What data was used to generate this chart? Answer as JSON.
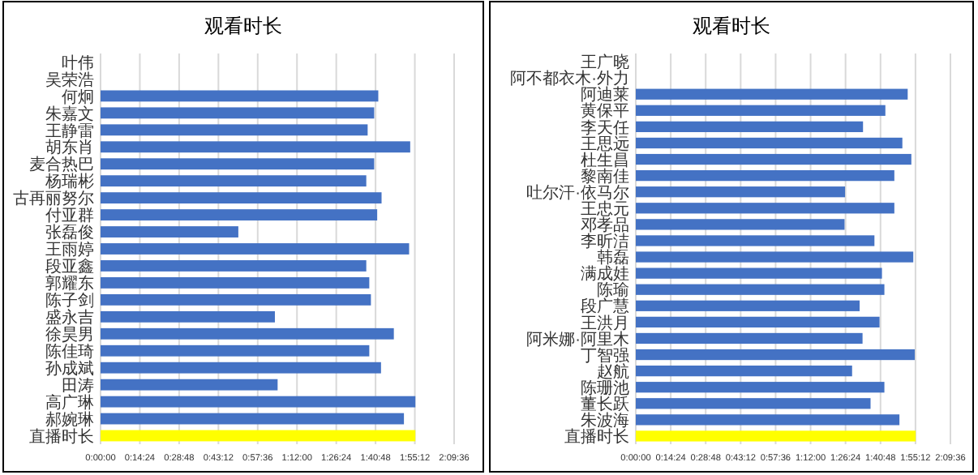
{
  "chart_data": [
    {
      "type": "bar",
      "orientation": "horizontal",
      "title": "观看时长",
      "grid": "x",
      "categories": [
        "叶伟",
        "吴荣浩",
        "何炯",
        "朱嘉文",
        "王静雷",
        "胡东肖",
        "麦合热巴",
        "杨瑞彬",
        "古再丽努尔",
        "付亚群",
        "张磊俊",
        "王雨婷",
        "段亚鑫",
        "郭耀东",
        "陈子剑",
        "盛永吉",
        "徐昊男",
        "陈佳琦",
        "孙成斌",
        "田涛",
        "高广琳",
        "郝婉琳",
        "直播时长"
      ],
      "values": [
        null,
        null,
        101.8,
        100.3,
        97.9,
        113.5,
        100.3,
        97.4,
        103.0,
        101.4,
        50.5,
        113.1,
        97.4,
        98.5,
        99.1,
        63.9,
        107.5,
        98.5,
        102.8,
        64.9,
        115.4,
        111.2,
        115.4
      ],
      "colors": [
        "#4472c4",
        "#4472c4",
        "#4472c4",
        "#4472c4",
        "#4472c4",
        "#4472c4",
        "#4472c4",
        "#4472c4",
        "#4472c4",
        "#4472c4",
        "#4472c4",
        "#4472c4",
        "#4472c4",
        "#4472c4",
        "#4472c4",
        "#4472c4",
        "#4472c4",
        "#4472c4",
        "#4472c4",
        "#4472c4",
        "#4472c4",
        "#4472c4",
        "#ffff00"
      ],
      "xlim": [
        0,
        129.6
      ],
      "xticks": [
        {
          "value": 0,
          "label": "0:00:00"
        },
        {
          "value": 14.4,
          "label": "0:14:24"
        },
        {
          "value": 28.8,
          "label": "0:28:48"
        },
        {
          "value": 43.2,
          "label": "0:43:12"
        },
        {
          "value": 57.6,
          "label": "0:57:36"
        },
        {
          "value": 72,
          "label": "1:12:00"
        },
        {
          "value": 86.4,
          "label": "1:26:24"
        },
        {
          "value": 100.8,
          "label": "1:40:48"
        },
        {
          "value": 115.2,
          "label": "1:55:12"
        },
        {
          "value": 129.6,
          "label": "2:09:36"
        }
      ]
    },
    {
      "type": "bar",
      "orientation": "horizontal",
      "title": "观看时长",
      "grid": "x",
      "categories": [
        "王广晓",
        "阿不都衣木·外力",
        "阿迪莱",
        "黄保平",
        "李天任",
        "王思远",
        "杜生昌",
        "黎南佳",
        "吐尔汗·依马尔",
        "王忠元",
        "邓孝品",
        "李昕洁",
        "韩磊",
        "满成娃",
        "陈瑜",
        "段广慧",
        "王洪月",
        "阿米娜·阿里木",
        "丁智强",
        "赵航",
        "陈珊池",
        "董长跃",
        "朱波海",
        "直播时长"
      ],
      "values": [
        null,
        null,
        112.0,
        102.8,
        93.6,
        109.8,
        113.5,
        106.5,
        86.2,
        106.5,
        86.0,
        98.3,
        114.3,
        101.4,
        102.4,
        92.2,
        100.4,
        93.4,
        114.9,
        89.1,
        102.4,
        96.7,
        108.6,
        115.3
      ],
      "colors": [
        "#4472c4",
        "#4472c4",
        "#4472c4",
        "#4472c4",
        "#4472c4",
        "#4472c4",
        "#4472c4",
        "#4472c4",
        "#4472c4",
        "#4472c4",
        "#4472c4",
        "#4472c4",
        "#4472c4",
        "#4472c4",
        "#4472c4",
        "#4472c4",
        "#4472c4",
        "#4472c4",
        "#4472c4",
        "#4472c4",
        "#4472c4",
        "#4472c4",
        "#4472c4",
        "#ffff00"
      ],
      "xlim": [
        0,
        129.6
      ],
      "xticks": [
        {
          "value": 0,
          "label": "0:00:00"
        },
        {
          "value": 14.4,
          "label": "0:14:24"
        },
        {
          "value": 28.8,
          "label": "0:28:48"
        },
        {
          "value": 43.2,
          "label": "0:43:12"
        },
        {
          "value": 57.6,
          "label": "0:57:36"
        },
        {
          "value": 72,
          "label": "1:12:00"
        },
        {
          "value": 86.4,
          "label": "1:26:24"
        },
        {
          "value": 100.8,
          "label": "1:40:48"
        },
        {
          "value": 115.2,
          "label": "1:55:12"
        },
        {
          "value": 129.6,
          "label": "2:09:36"
        }
      ]
    }
  ]
}
